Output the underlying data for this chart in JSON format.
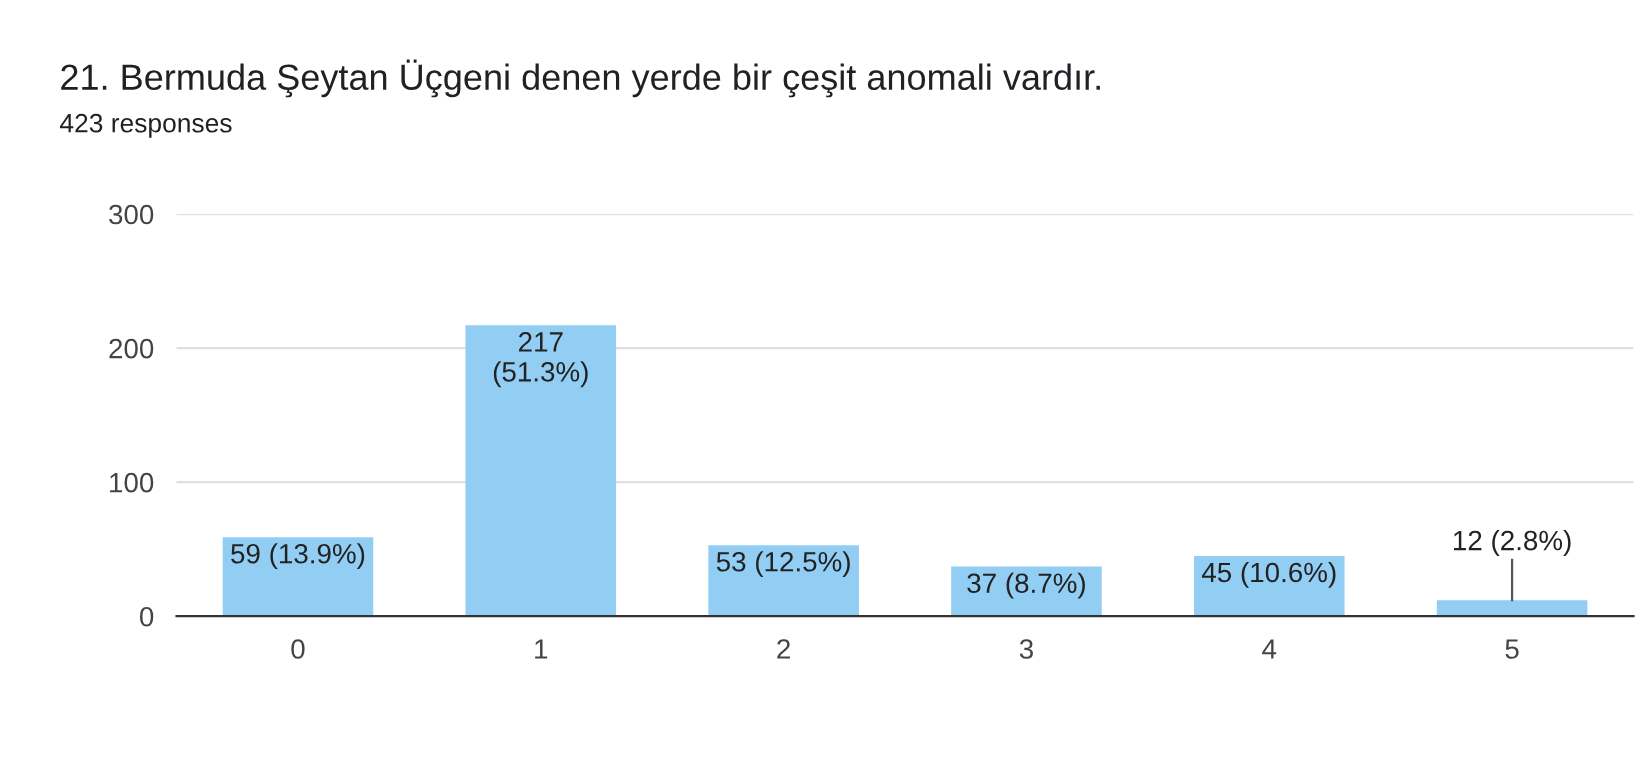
{
  "chart_data": {
    "type": "bar",
    "title": "21. Bermuda Şeytan Üçgeni denen yerde bir çeşit anomali vardır.",
    "subtitle": "423 responses",
    "categories": [
      "0",
      "1",
      "2",
      "3",
      "4",
      "5"
    ],
    "values": [
      59,
      217,
      53,
      37,
      45,
      12
    ],
    "value_labels": [
      "59 (13.9%)",
      "217\n(51.3%)",
      "53 (12.5%)",
      "37 (8.7%)",
      "45 (10.6%)",
      "12 (2.8%)"
    ],
    "color": "#92cdf3",
    "ylim": [
      0,
      300
    ],
    "yticks": [
      0,
      100,
      200,
      300
    ],
    "grid": "y"
  }
}
